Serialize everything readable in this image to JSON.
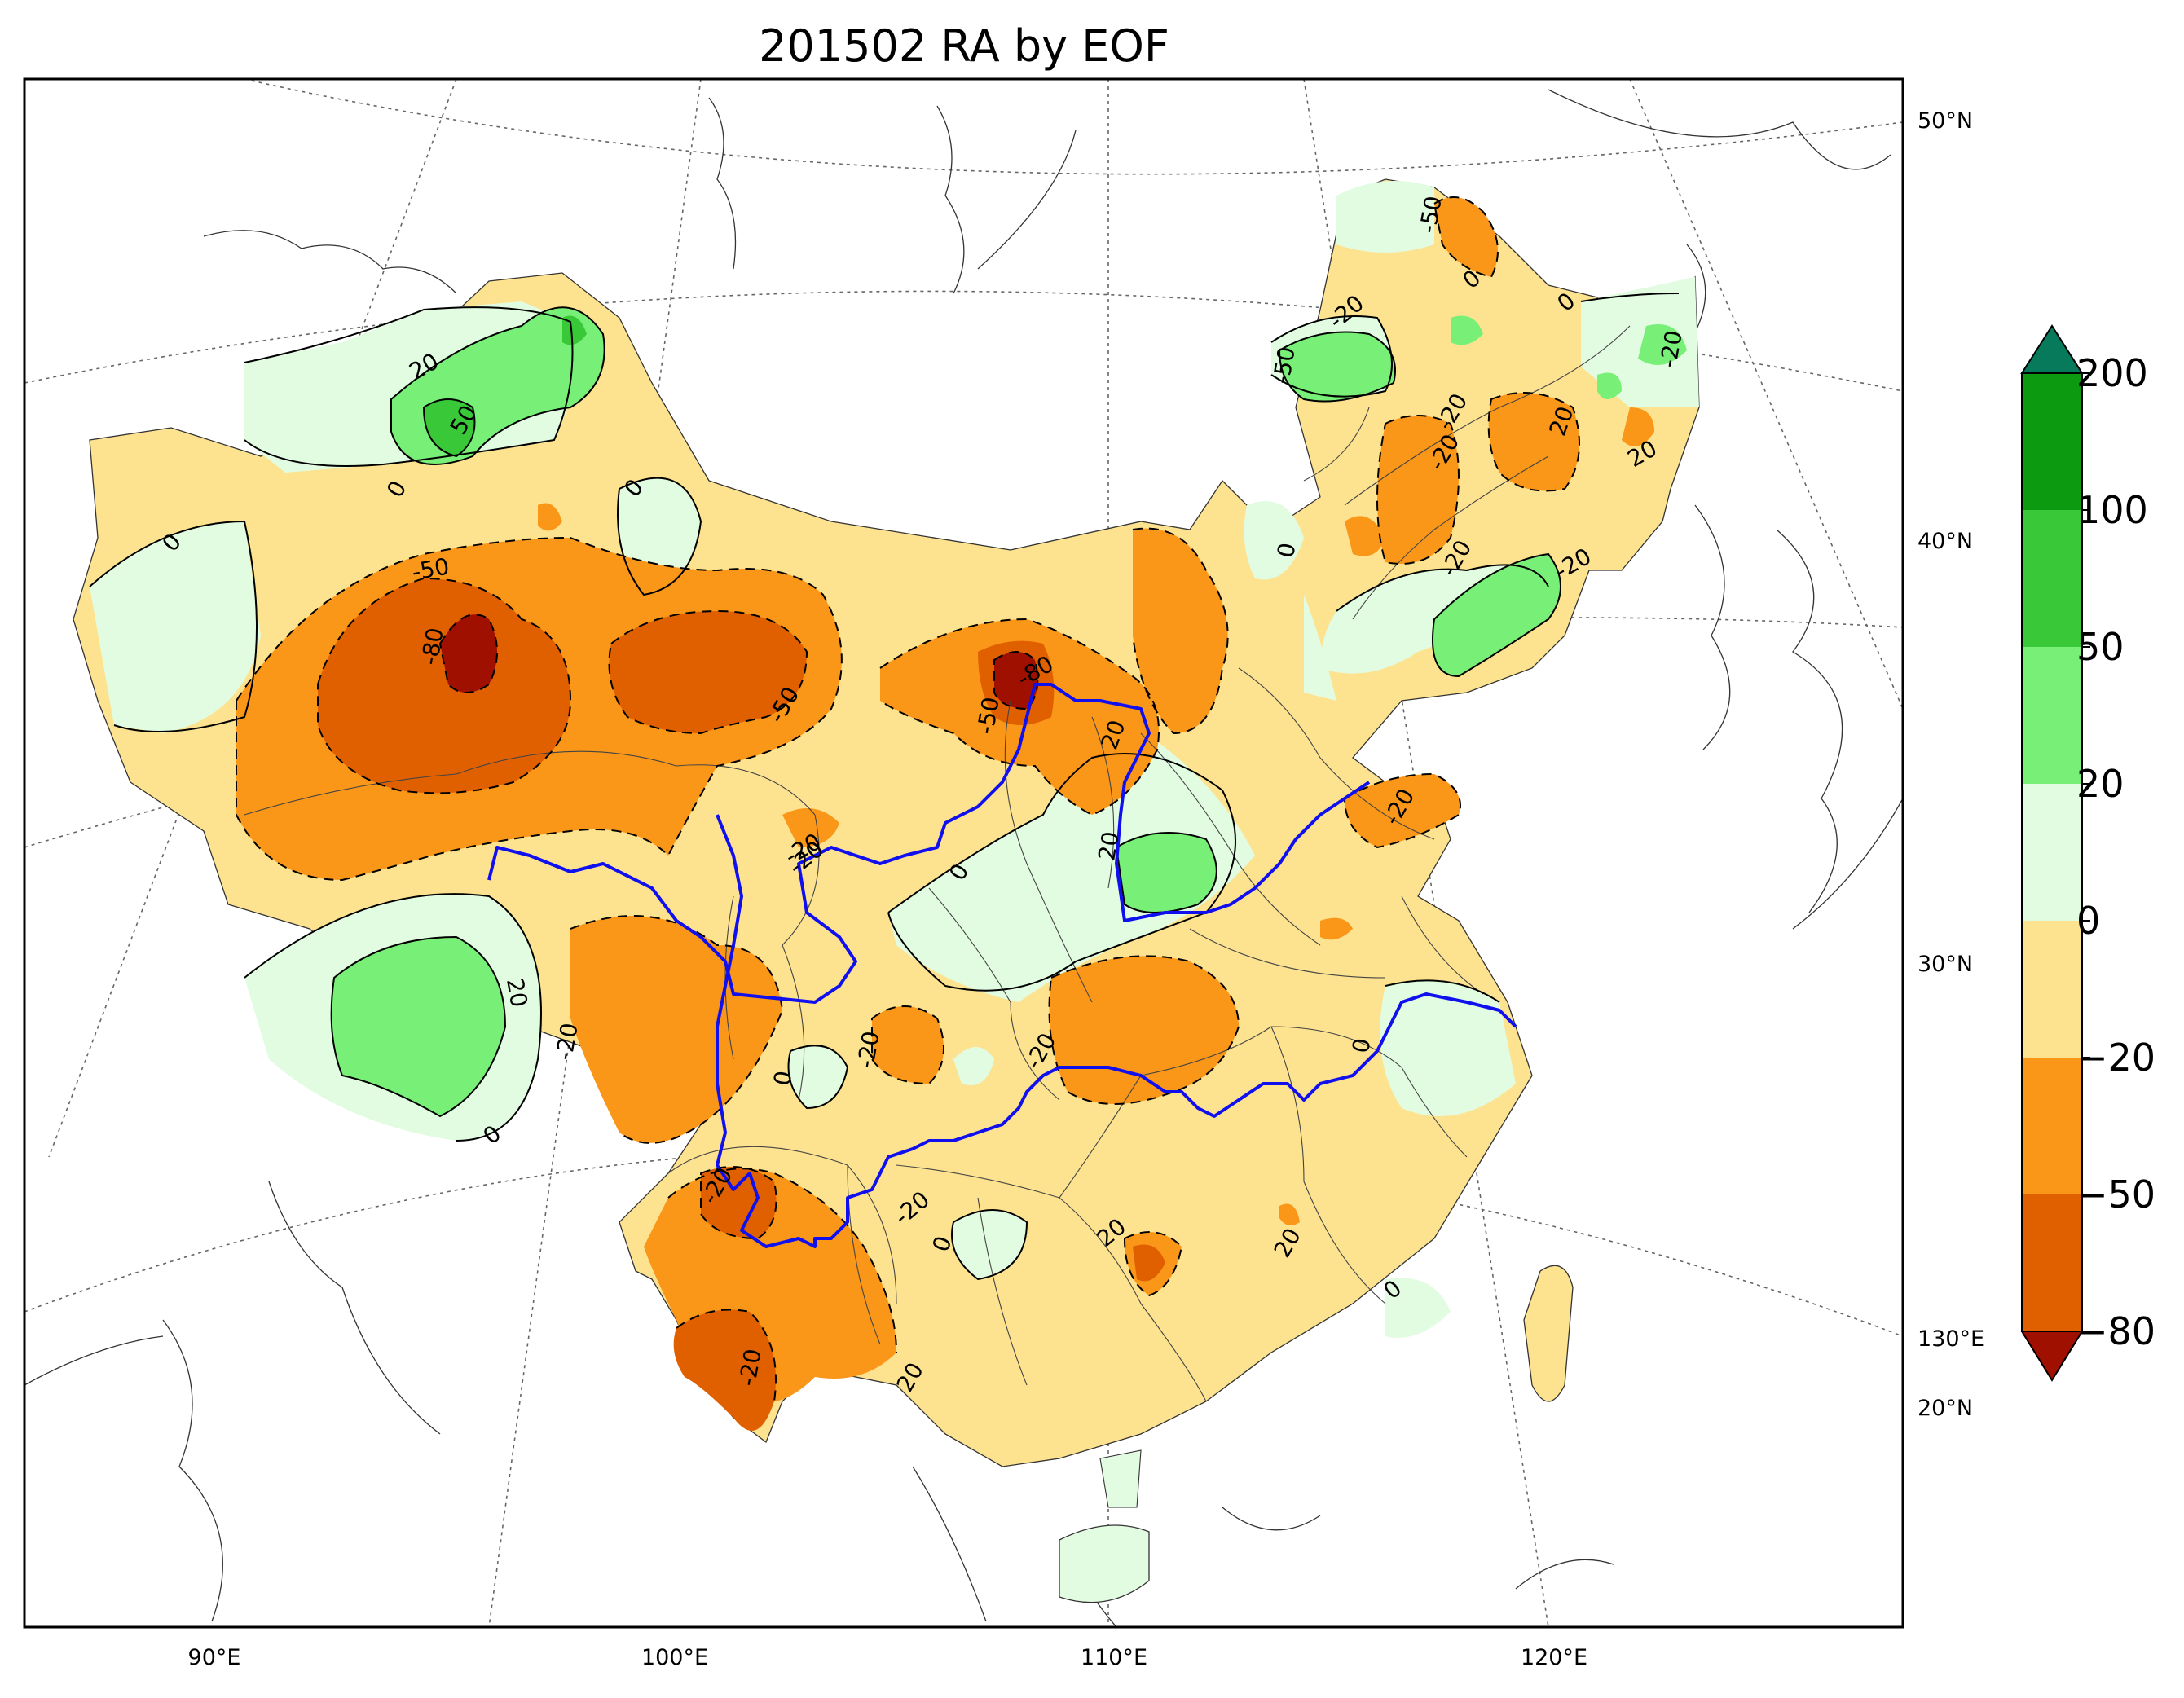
{
  "title": "201502 RA by EOF",
  "longitude_labels": [
    "90°E",
    "100°E",
    "110°E",
    "120°E"
  ],
  "right_labels": [
    "50°N",
    "40°N",
    "30°N",
    "130°E",
    "20°N"
  ],
  "colorbar": {
    "tick_labels": [
      "200",
      "100",
      "50",
      "20",
      "0",
      "−20",
      "−50",
      "−80"
    ],
    "bins": [
      {
        "range": "100 to 200",
        "color": "#0c9a10"
      },
      {
        "range": "50 to 100",
        "color": "#38c838"
      },
      {
        "range": "20 to 50",
        "color": "#78f078"
      },
      {
        "range": "0 to 20",
        "color": "#e2fce2"
      },
      {
        "range": "-20 to 0",
        "color": "#fde390"
      },
      {
        "range": "-50 to -20",
        "color": "#fa9618"
      },
      {
        "range": "-80 to -50",
        "color": "#e06000"
      }
    ],
    "over_color": "#067a5a",
    "under_color": "#a01000"
  },
  "contour_labels": [
    {
      "text": "20"
    },
    {
      "text": "50"
    },
    {
      "text": "0"
    },
    {
      "text": "0"
    },
    {
      "text": "0"
    },
    {
      "text": "-50"
    },
    {
      "text": "-80"
    },
    {
      "text": "-50"
    },
    {
      "text": "-80"
    },
    {
      "text": "-50"
    },
    {
      "text": "20"
    },
    {
      "text": "-20"
    },
    {
      "text": "0"
    },
    {
      "text": "20"
    },
    {
      "text": "-20"
    },
    {
      "text": "0"
    },
    {
      "text": "-20"
    },
    {
      "text": "20"
    },
    {
      "text": "0"
    },
    {
      "text": "-50"
    },
    {
      "text": "0"
    },
    {
      "text": "-20"
    },
    {
      "text": "-50"
    },
    {
      "text": "-20"
    },
    {
      "text": "20"
    },
    {
      "text": "-20"
    },
    {
      "text": "-20"
    },
    {
      "text": "-20"
    },
    {
      "text": "20"
    },
    {
      "text": "20"
    },
    {
      "text": "0"
    },
    {
      "text": "20"
    },
    {
      "text": "0"
    },
    {
      "text": "20"
    },
    {
      "text": "-20"
    },
    {
      "text": "-20"
    },
    {
      "text": "-20"
    },
    {
      "text": "0"
    },
    {
      "text": "0"
    },
    {
      "text": "-20"
    },
    {
      "text": "-20"
    },
    {
      "text": "0"
    },
    {
      "text": "-20"
    },
    {
      "text": "-20"
    }
  ]
}
